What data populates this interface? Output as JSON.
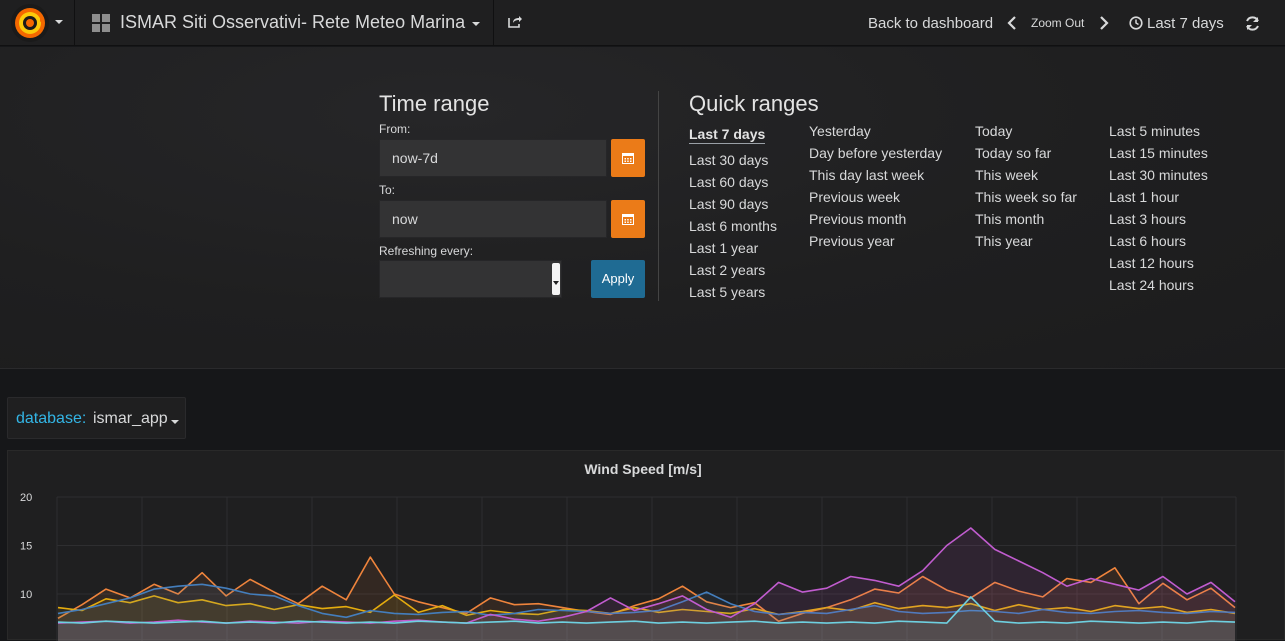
{
  "navbar": {
    "dashboard_title": "ISMAR Siti Osservativi- Rete Meteo Marina",
    "back_label": "Back to dashboard",
    "zoom_label": "Zoom Out",
    "time_label": "Last 7 days",
    "icons": [
      "grafana-logo-icon",
      "grid-icon",
      "share-icon",
      "chevron-left-icon",
      "chevron-right-icon",
      "clock-icon",
      "refresh-icon"
    ]
  },
  "time_range": {
    "heading": "Time range",
    "from_label": "From:",
    "from_value": "now-7d",
    "to_label": "To:",
    "to_value": "now",
    "refresh_label": "Refreshing every:",
    "refresh_value": "",
    "apply_label": "Apply"
  },
  "quick_ranges": {
    "heading": "Quick ranges",
    "col1": [
      "Last 7 days",
      "Last 30 days",
      "Last 60 days",
      "Last 90 days",
      "Last 6 months",
      "Last 1 year",
      "Last 2 years",
      "Last 5 years"
    ],
    "col2": [
      "Yesterday",
      "Day before yesterday",
      "This day last week",
      "Previous week",
      "Previous month",
      "Previous year"
    ],
    "col3": [
      "Today",
      "Today so far",
      "This week",
      "This week so far",
      "This month",
      "This year"
    ],
    "col4": [
      "Last 5 minutes",
      "Last 15 minutes",
      "Last 30 minutes",
      "Last 1 hour",
      "Last 3 hours",
      "Last 6 hours",
      "Last 12 hours",
      "Last 24 hours"
    ],
    "selected": "Last 7 days"
  },
  "variable": {
    "label": "database:",
    "value": "ismar_app"
  },
  "panel": {
    "title": "Wind Speed [m/s]"
  },
  "colors": {
    "accent_orange": "#eb7b18",
    "apply_blue": "#1f6b93",
    "variable_label": "#33b5e5"
  },
  "chart_data": {
    "type": "line",
    "title": "Wind Speed [m/s]",
    "y_ticks": [
      10,
      15,
      20
    ],
    "ylim": [
      0,
      20
    ],
    "grid": true,
    "series": [
      {
        "color": "#ef843c",
        "values": [
          7.5,
          8.9,
          10.5,
          9.6,
          11.0,
          10.0,
          12.2,
          9.8,
          11.5,
          10.2,
          9.0,
          10.8,
          9.4,
          13.8,
          10.0,
          9.2,
          8.6,
          8.0,
          9.6,
          8.9,
          9.0,
          8.6,
          8.2,
          7.9,
          8.8,
          9.5,
          10.8,
          9.2,
          8.6,
          9.1,
          7.2,
          8.0,
          8.6,
          9.4,
          10.5,
          10.1,
          11.8,
          10.4,
          9.6,
          11.2,
          10.3,
          9.7,
          11.6,
          11.2,
          12.7,
          9.0,
          11.1,
          9.4,
          10.6,
          8.6
        ]
      },
      {
        "color": "#e5ac0e",
        "values": [
          8.6,
          8.3,
          9.5,
          9.1,
          9.8,
          9.1,
          9.4,
          8.8,
          9.0,
          8.4,
          8.9,
          8.5,
          8.7,
          8.1,
          9.9,
          8.1,
          8.8,
          7.8,
          8.3,
          8.0,
          7.9,
          8.4,
          8.3,
          8.0,
          8.6,
          8.1,
          8.4,
          8.2,
          8.0,
          8.5,
          7.9,
          8.2,
          8.6,
          8.3,
          9.1,
          8.5,
          8.8,
          8.6,
          9.0,
          8.3,
          8.9,
          8.4,
          8.6,
          8.2,
          8.8,
          8.5,
          8.7,
          8.1,
          8.4,
          8.0
        ]
      },
      {
        "color": "#447ebc",
        "values": [
          8.0,
          8.4,
          9.0,
          9.6,
          10.5,
          10.8,
          11.0,
          10.6,
          10.0,
          9.8,
          8.8,
          8.0,
          7.6,
          8.3,
          8.0,
          7.9,
          8.1,
          8.2,
          7.8,
          8.0,
          8.4,
          8.3,
          8.2,
          8.0,
          8.1,
          8.3,
          9.2,
          10.2,
          9.0,
          8.2,
          7.9,
          8.1,
          8.0,
          8.4,
          8.8,
          8.2,
          8.0,
          8.1,
          8.3,
          8.2,
          8.0,
          8.4,
          8.1,
          8.0,
          8.2,
          8.3,
          8.1,
          8.0,
          8.2,
          8.1
        ]
      },
      {
        "color": "#c15ccf",
        "values": [
          7.0,
          7.1,
          7.2,
          7.0,
          7.1,
          7.3,
          7.1,
          7.0,
          7.2,
          7.1,
          7.0,
          7.2,
          7.1,
          7.0,
          7.2,
          7.3,
          7.1,
          7.0,
          7.9,
          7.4,
          7.2,
          7.6,
          8.2,
          9.6,
          8.3,
          9.0,
          9.8,
          8.4,
          7.6,
          9.0,
          11.2,
          10.2,
          10.6,
          11.8,
          11.4,
          10.8,
          12.4,
          15.0,
          16.8,
          14.6,
          13.4,
          12.2,
          10.8,
          11.6,
          11.0,
          10.4,
          11.8,
          10.0,
          11.2,
          9.2
        ]
      },
      {
        "color": "#6ed0e0",
        "values": [
          7.1,
          7.0,
          7.2,
          7.1,
          7.0,
          7.1,
          7.2,
          7.0,
          7.1,
          7.0,
          7.2,
          7.1,
          7.0,
          7.1,
          7.0,
          7.2,
          7.1,
          7.0,
          7.1,
          7.2,
          7.0,
          7.1,
          7.0,
          7.1,
          7.2,
          7.0,
          7.1,
          7.0,
          7.1,
          7.2,
          7.0,
          7.1,
          7.0,
          7.1,
          7.0,
          7.2,
          7.1,
          7.0,
          9.7,
          7.2,
          7.0,
          7.1,
          7.0,
          7.2,
          7.1,
          7.0,
          7.1,
          7.0,
          7.2,
          7.1
        ]
      }
    ]
  }
}
